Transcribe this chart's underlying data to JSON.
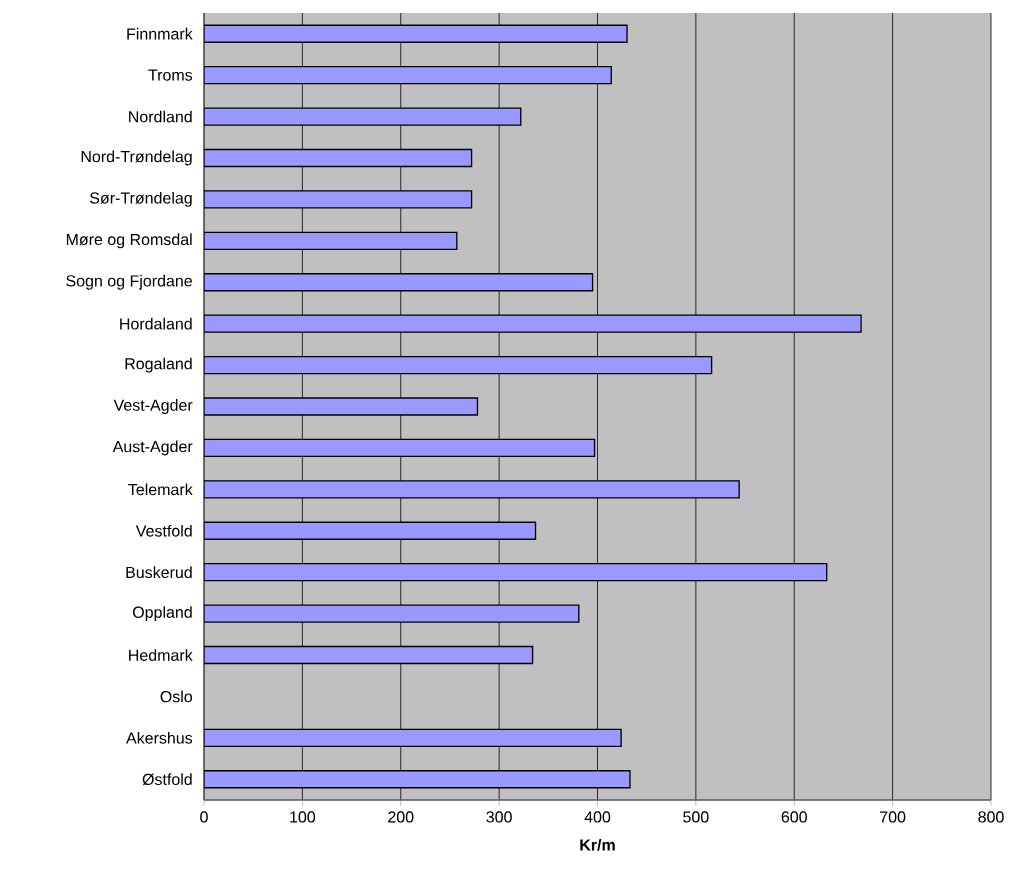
{
  "chart_data": {
    "type": "bar",
    "orientation": "horizontal",
    "xlabel": "Kr/m",
    "categories": [
      "Finnmark",
      "Troms",
      "Nordland",
      "Nord-Trøndelag",
      "Sør-Trøndelag",
      "Møre og Romsdal",
      "Sogn og Fjordane",
      "Hordaland",
      "Rogaland",
      "Vest-Agder",
      "Aust-Agder",
      "Telemark",
      "Vestfold",
      "Buskerud",
      "Oppland",
      "Hedmark",
      "Oslo",
      "Akershus",
      "Østfold"
    ],
    "values": [
      430,
      414,
      322,
      272,
      272,
      257,
      395,
      668,
      516,
      278,
      397,
      544,
      337,
      633,
      381,
      334,
      null,
      424,
      433
    ],
    "color": "#9999ff",
    "xlim": [
      0,
      800
    ],
    "xticks": [
      0,
      100,
      200,
      300,
      400,
      500,
      600,
      700,
      800
    ],
    "grid": "x"
  }
}
